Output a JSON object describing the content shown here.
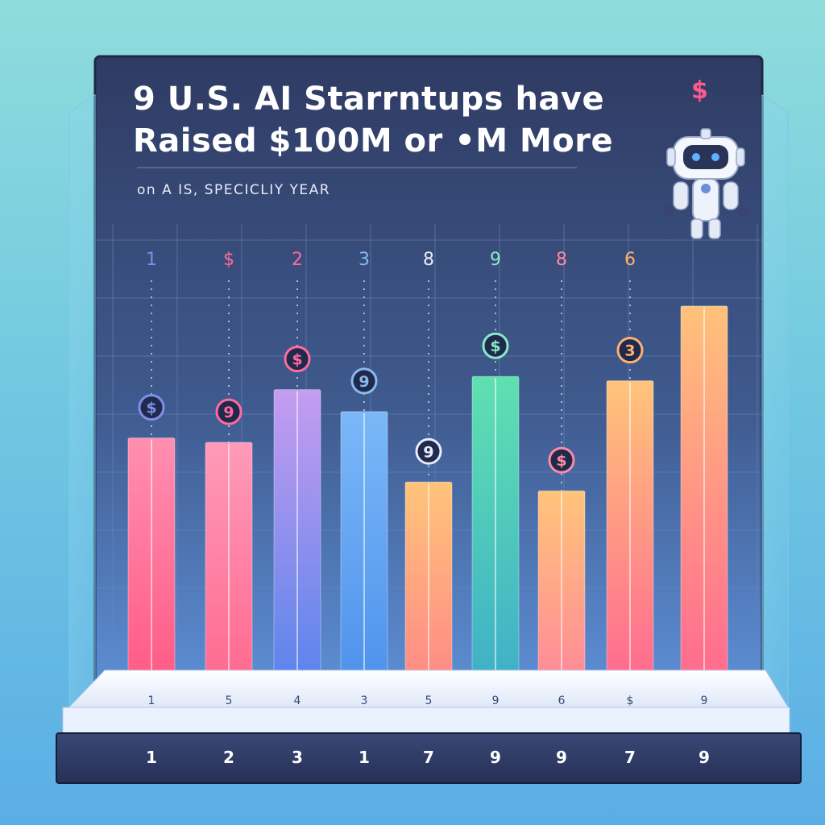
{
  "chart_data": {
    "type": "bar",
    "title_line1": "9 U.S. AI Starrntups have",
    "title_line2": "Raised $100M or •M More",
    "subtitle": "on A IS, SPECICLIY YEAR",
    "ylim": [
      0,
      10
    ],
    "grid": true,
    "bars": [
      {
        "value": 5.5,
        "top_label": "1",
        "base_label": "1",
        "footer_label": "1",
        "color_top": "#ff8fb0",
        "color_bottom": "#ff5b86",
        "top_color": "#7f8ee8",
        "coin_label": "$"
      },
      {
        "value": 5.4,
        "top_label": "$",
        "base_label": "5",
        "footer_label": "2",
        "color_top": "#ff9ab8",
        "color_bottom": "#ff6a90",
        "top_color": "#ff6b9a",
        "coin_label": "9"
      },
      {
        "value": 6.6,
        "top_label": "2",
        "base_label": "4",
        "footer_label": "3",
        "color_top": "#c59cf0",
        "color_bottom": "#5b84ec",
        "top_color": "#ff6b9a",
        "coin_label": "$"
      },
      {
        "value": 6.1,
        "top_label": "3",
        "base_label": "3",
        "footer_label": "1",
        "color_top": "#7ab8f8",
        "color_bottom": "#4f92ec",
        "top_color": "#8ab8f0",
        "coin_label": "9"
      },
      {
        "value": 4.5,
        "top_label": "8",
        "base_label": "5",
        "footer_label": "7",
        "color_top": "#ffc47a",
        "color_bottom": "#ff8a86",
        "top_color": "#e8ecf8",
        "coin_label": "9"
      },
      {
        "value": 6.9,
        "top_label": "9",
        "base_label": "9",
        "footer_label": "9",
        "color_top": "#5fe0b0",
        "color_bottom": "#3fb0c8",
        "top_color": "#8ae8c8",
        "coin_label": "$"
      },
      {
        "value": 4.3,
        "top_label": "8",
        "base_label": "6",
        "footer_label": "9",
        "color_top": "#ffc47a",
        "color_bottom": "#ff8a98",
        "top_color": "#ff8aa0",
        "coin_label": "$"
      },
      {
        "value": 6.8,
        "top_label": "6",
        "base_label": "$",
        "footer_label": "7",
        "color_top": "#ffc47a",
        "color_bottom": "#ff6a90",
        "top_color": "#ffb070",
        "coin_label": "3"
      },
      {
        "value": 8.5,
        "top_label": "",
        "base_label": "9",
        "footer_label": "9",
        "color_top": "#ffc27a",
        "color_bottom": "#ff6a90",
        "top_color": "#ffffff",
        "coin_label": ""
      }
    ],
    "robot_badge": "$"
  }
}
